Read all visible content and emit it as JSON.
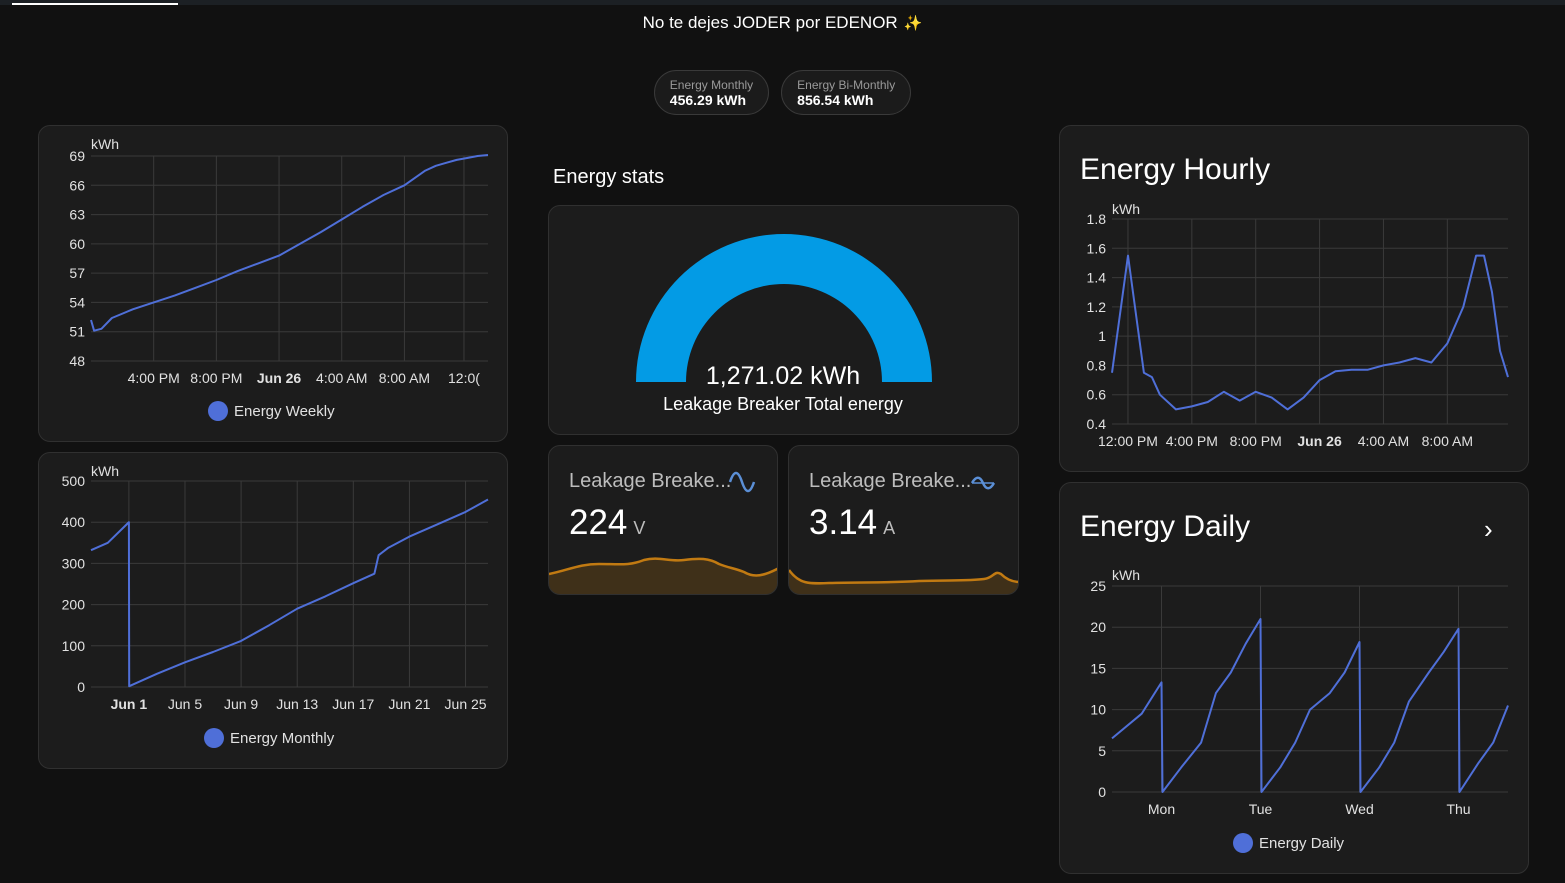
{
  "header": {
    "title": "No te dejes JODER por EDENOR",
    "sparkle": "✨"
  },
  "badges": [
    {
      "label": "Energy Monthly",
      "value": "456.29 kWh"
    },
    {
      "label": "Energy Bi-Monthly",
      "value": "856.54 kWh"
    }
  ],
  "stats": {
    "section_title": "Energy stats",
    "gauge": {
      "value": "1,271.02 kWh",
      "name": "Leakage Breaker Total energy",
      "level": 1.0,
      "color": "#039be5"
    },
    "voltage": {
      "name": "Leakage Breake...",
      "value": "224",
      "unit": "V",
      "icon": "sine-wave-icon"
    },
    "current": {
      "name": "Leakage Breake...",
      "value": "3.14",
      "unit": "A",
      "icon": "current-ac-icon"
    },
    "sparkline_color": "#c17a12"
  },
  "cards": {
    "hourly_title": "Energy Hourly",
    "daily_title": "Energy Daily",
    "daily_chevron": "›"
  },
  "colors": {
    "series": "#4f6fd8",
    "background": "#111111",
    "card": "#1c1c1c"
  },
  "chart_data": [
    {
      "id": "weekly",
      "type": "line",
      "ylabel": "kWh",
      "ylim": [
        48,
        69
      ],
      "yticks": [
        "48",
        "51",
        "54",
        "57",
        "60",
        "63",
        "66",
        "69"
      ],
      "xticks": [
        "4:00 PM",
        "8:00 PM",
        "Jun 26",
        "4:00 AM",
        "8:00 AM",
        "12:0("
      ],
      "x": [
        0,
        0.3,
        1,
        2,
        4,
        6,
        8,
        10,
        12,
        14,
        16,
        18,
        20,
        22,
        24,
        26,
        28,
        30,
        32,
        33,
        34,
        35,
        36,
        37,
        38
      ],
      "series": [
        {
          "name": "Energy Weekly",
          "values": [
            52.2,
            51.1,
            51.3,
            52.4,
            53.3,
            54.0,
            54.7,
            55.5,
            56.3,
            57.2,
            58.0,
            58.8,
            60.0,
            61.2,
            62.5,
            63.8,
            65.0,
            66.0,
            67.5,
            68.0,
            68.3,
            68.6,
            68.8,
            69.0,
            69.1
          ]
        }
      ],
      "grid": true,
      "legend": "bottom"
    },
    {
      "id": "monthly",
      "type": "line",
      "ylabel": "kWh",
      "ylim": [
        0,
        500
      ],
      "yticks": [
        "0",
        "100",
        "200",
        "300",
        "400",
        "500"
      ],
      "xticks": [
        "Jun 1",
        "Jun 5",
        "Jun 9",
        "Jun 13",
        "Jun 17",
        "Jun 21",
        "Jun 25"
      ],
      "x": [
        -2.7,
        -1.5,
        0,
        0.02,
        2,
        4,
        6,
        8,
        10,
        12,
        14,
        16,
        17.5,
        17.8,
        18.5,
        20,
        22,
        24,
        25.6
      ],
      "series": [
        {
          "name": "Energy Monthly",
          "values": [
            332,
            350,
            400,
            2,
            32,
            60,
            85,
            112,
            150,
            190,
            220,
            252,
            275,
            320,
            338,
            365,
            395,
            425,
            455
          ]
        }
      ],
      "grid": true,
      "legend": "bottom"
    },
    {
      "id": "hourly",
      "type": "line",
      "ylabel": "kWh",
      "ylim": [
        0.4,
        1.8
      ],
      "yticks": [
        "0.4",
        "0.6",
        "0.8",
        "1",
        "1.2",
        "1.4",
        "1.6",
        "1.8"
      ],
      "xticks": [
        "12:00 PM",
        "4:00 PM",
        "8:00 PM",
        "Jun 26",
        "4:00 AM",
        "8:00 AM"
      ],
      "x": [
        -1.0,
        0,
        1,
        1.5,
        2,
        3,
        4,
        5,
        6,
        7,
        8,
        9,
        10,
        11,
        12,
        13,
        14,
        15,
        16,
        17,
        18,
        19,
        20,
        21,
        21.8,
        22.3,
        22.8,
        23.3,
        23.8
      ],
      "series": [
        {
          "name": "Energy Hourly",
          "values": [
            0.75,
            1.55,
            0.75,
            0.72,
            0.6,
            0.5,
            0.52,
            0.55,
            0.62,
            0.56,
            0.62,
            0.58,
            0.5,
            0.58,
            0.7,
            0.76,
            0.77,
            0.77,
            0.8,
            0.82,
            0.85,
            0.82,
            0.95,
            1.2,
            1.55,
            1.55,
            1.3,
            0.9,
            0.72
          ]
        }
      ],
      "grid": true,
      "legend": "none"
    },
    {
      "id": "daily",
      "type": "line",
      "ylabel": "kWh",
      "ylim": [
        0,
        25
      ],
      "yticks": [
        "0",
        "5",
        "10",
        "15",
        "20",
        "25"
      ],
      "xticks": [
        "Mon",
        "Tue",
        "Wed",
        "Thu"
      ],
      "x": [
        -0.5,
        -0.2,
        0,
        0.01,
        0.2,
        0.4,
        0.55,
        0.7,
        0.85,
        1,
        1.01,
        1.2,
        1.35,
        1.5,
        1.7,
        1.85,
        2,
        2.01,
        2.2,
        2.35,
        2.5,
        2.7,
        2.85,
        3,
        3.01,
        3.2,
        3.35,
        3.5
      ],
      "series": [
        {
          "name": "Energy Daily",
          "values": [
            6.5,
            9.5,
            13.3,
            0,
            3,
            6,
            12,
            14.5,
            18,
            21,
            0,
            3,
            6,
            10,
            12,
            14.5,
            18.2,
            0,
            3,
            6,
            11,
            14.5,
            17,
            19.8,
            0,
            3.5,
            6,
            10.5
          ]
        }
      ],
      "grid": true,
      "legend": "bottom"
    }
  ]
}
